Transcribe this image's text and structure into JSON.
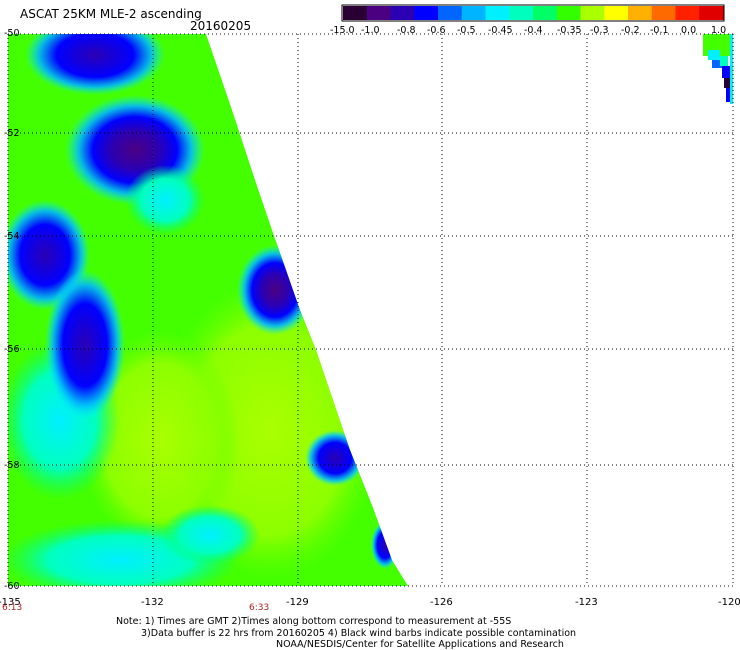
{
  "header": {
    "title": "ASCAT 25KM MLE-2 ascending",
    "date": "20160205"
  },
  "colorbar": {
    "labels": [
      "-15.0",
      "-1.0",
      "-0.8",
      "-0.6",
      "-0.5",
      "-0.45",
      "-0.4",
      "-0.35",
      "-0.3",
      "-0.2",
      "-0.1",
      "0.0",
      "1.0"
    ],
    "colors": [
      "#2a0033",
      "#4b0082",
      "#2b00b3",
      "#0000ff",
      "#0066ff",
      "#00b4ff",
      "#00f0ff",
      "#00ffbf",
      "#00ff66",
      "#33ff00",
      "#aaff00",
      "#ffff00",
      "#ffb000",
      "#ff6a00",
      "#ff2000",
      "#e00000"
    ]
  },
  "chart_data": {
    "type": "heatmap",
    "title": "ASCAT 25KM MLE-2 ascending",
    "subtitle": "20160205",
    "x_ticks": [
      "-135",
      "-132",
      "-129",
      "-126",
      "-123",
      "-120"
    ],
    "y_ticks": [
      "-50",
      "-52",
      "-54",
      "-56",
      "-58",
      "-60"
    ],
    "xlim": [
      -135,
      -120
    ],
    "ylim": [
      -60,
      -50
    ],
    "grid": true,
    "swath_edge_lon_at": [
      [
        -50,
        -131
      ],
      [
        -60,
        -126.8
      ]
    ],
    "notes": [
      "Note: 1) Times are GMT 2)Times along bottom correspond to measurement at -55S",
      "3)Data buffer is 22 hrs from 20160205 4) Black wind barbs indicate possible contamination",
      "NOAA/NESDIS/Center for Satellite Applications and Research"
    ],
    "time_labels": [
      "6:13",
      "6:33"
    ]
  }
}
